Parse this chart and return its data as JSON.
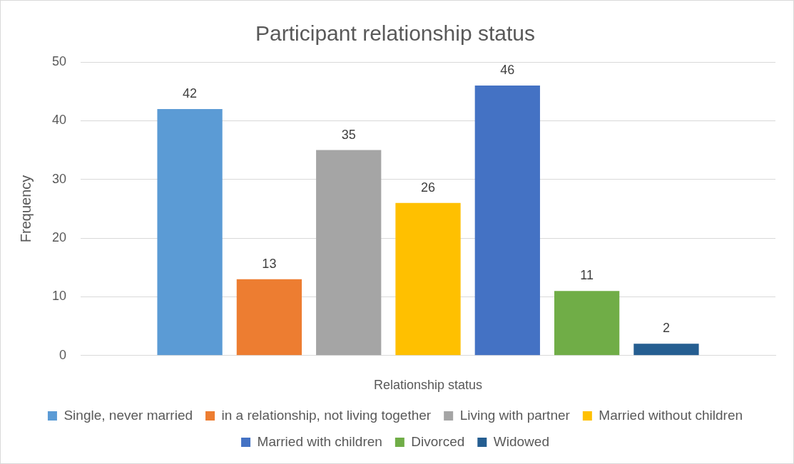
{
  "chart_data": {
    "type": "bar",
    "title": "Participant relationship status",
    "xlabel": "Relationship status",
    "ylabel": "Frequency",
    "categories": [
      null
    ],
    "series": [
      {
        "name": "Single, never married",
        "color": "#5b9bd5",
        "values": [
          42
        ]
      },
      {
        "name": "in a relationship, not living together",
        "color": "#ed7d31",
        "values": [
          13
        ]
      },
      {
        "name": "Living with partner",
        "color": "#a5a5a5",
        "values": [
          35
        ]
      },
      {
        "name": "Married without children",
        "color": "#ffc000",
        "values": [
          26
        ]
      },
      {
        "name": "Married with children",
        "color": "#4472c4",
        "values": [
          46
        ]
      },
      {
        "name": "Divorced",
        "color": "#70ad47",
        "values": [
          11
        ]
      },
      {
        "name": "Widowed",
        "color": "#255e91",
        "values": [
          2
        ]
      }
    ],
    "ylim": [
      0,
      50
    ],
    "yticks": [
      0,
      10,
      20,
      30,
      40,
      50
    ],
    "grid": "y",
    "legend": "bottom",
    "data_labels": true
  }
}
